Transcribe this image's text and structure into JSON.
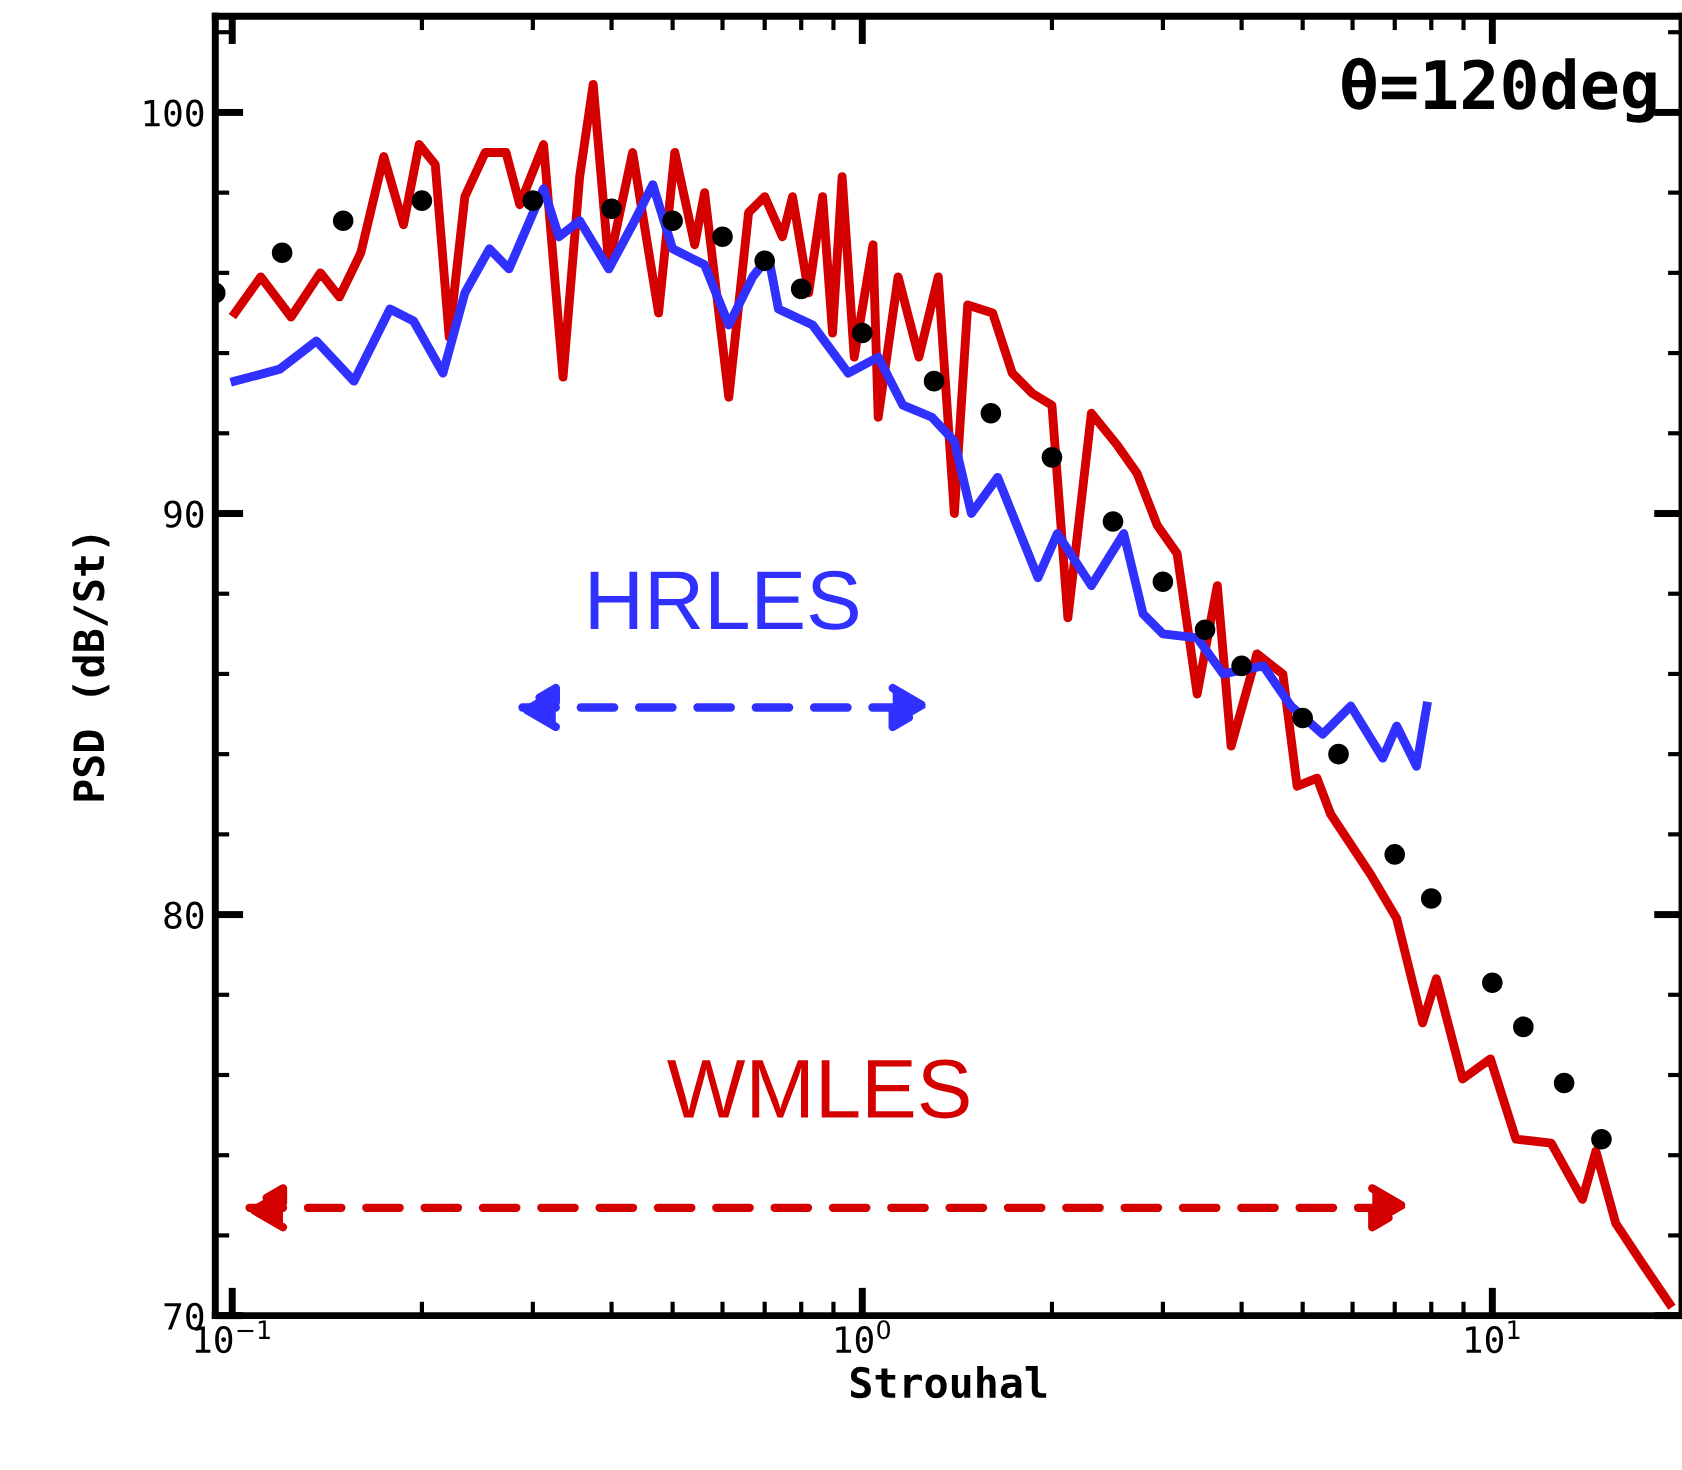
{
  "chart_data": {
    "type": "line",
    "xlabel": "Strouhal",
    "ylabel": "PSD (dB/St)",
    "log": "x",
    "grid": false,
    "legend": false,
    "xlim": [
      0.094,
      20
    ],
    "ylim": [
      70,
      102.4
    ],
    "xticks": [
      {
        "value": 0.1,
        "label": "10$^{−1}$"
      },
      {
        "value": 1,
        "label": "10$^{0}$"
      },
      {
        "value": 10,
        "label": "10$^{1}$"
      }
    ],
    "yticks": [
      70,
      80,
      90,
      100
    ],
    "annotations": [
      "θ=120deg"
    ],
    "series": [
      {
        "type": "scatter",
        "marker": "circle",
        "color": "#000000",
        "x": [
          0.094,
          0.12,
          0.15,
          0.2,
          0.3,
          0.4,
          0.5,
          0.6,
          0.7,
          0.8,
          1.0,
          1.3,
          1.6,
          2.0,
          2.5,
          3.0,
          3.5,
          4.0,
          5.0,
          5.7,
          7.0,
          8.0,
          10,
          11.2,
          13,
          14.9
        ],
        "values": [
          95.5,
          96.5,
          97.3,
          97.8,
          97.8,
          97.6,
          97.3,
          96.9,
          96.3,
          95.6,
          94.5,
          93.3,
          92.5,
          91.4,
          89.8,
          88.3,
          87.1,
          86.2,
          84.9,
          84.0,
          81.5,
          80.4,
          78.3,
          77.2,
          75.8,
          74.4
        ]
      },
      {
        "name": "WMLES",
        "color": "#d40000",
        "x": [
          0.101,
          0.111,
          0.124,
          0.138,
          0.148,
          0.16,
          0.174,
          0.187,
          0.198,
          0.21,
          0.221,
          0.234,
          0.252,
          0.272,
          0.286,
          0.312,
          0.335,
          0.356,
          0.374,
          0.396,
          0.432,
          0.475,
          0.504,
          0.542,
          0.562,
          0.614,
          0.66,
          0.7,
          0.747,
          0.775,
          0.822,
          0.865,
          0.897,
          0.929,
          0.971,
          1.04,
          1.06,
          1.14,
          1.23,
          1.32,
          1.4,
          1.47,
          1.61,
          1.73,
          1.86,
          2.0,
          2.12,
          2.31,
          2.54,
          2.73,
          2.94,
          3.16,
          3.4,
          3.66,
          3.85,
          4.23,
          4.65,
          4.9,
          5.27,
          5.54,
          6.41,
          7.05,
          7.75,
          8.15,
          8.97,
          9.93,
          10.9,
          12.4,
          13.9,
          14.6,
          15.7,
          17.3,
          19.1
        ],
        "values": [
          95.0,
          95.9,
          94.9,
          96.0,
          95.4,
          96.5,
          98.9,
          97.2,
          99.2,
          98.7,
          94.4,
          97.9,
          99.0,
          99.0,
          97.7,
          99.2,
          93.4,
          98.4,
          100.7,
          96.2,
          99.0,
          95.0,
          99.0,
          96.7,
          98.0,
          92.9,
          97.5,
          97.9,
          96.9,
          97.9,
          95.5,
          97.9,
          94.5,
          98.4,
          93.9,
          96.7,
          92.4,
          95.9,
          93.9,
          95.9,
          90.0,
          95.2,
          95.0,
          93.5,
          93.0,
          92.7,
          87.4,
          92.5,
          91.7,
          91.0,
          89.7,
          89.0,
          85.5,
          88.2,
          84.2,
          86.5,
          86.0,
          83.2,
          83.4,
          82.5,
          81.0,
          79.9,
          77.3,
          78.4,
          75.9,
          76.4,
          74.4,
          74.3,
          72.9,
          74.1,
          72.3,
          71.3,
          70.3
        ]
      },
      {
        "name": "HRLES",
        "color": "#3030ff",
        "x": [
          0.101,
          0.119,
          0.136,
          0.156,
          0.178,
          0.194,
          0.216,
          0.234,
          0.256,
          0.275,
          0.312,
          0.33,
          0.356,
          0.396,
          0.432,
          0.465,
          0.5,
          0.562,
          0.614,
          0.67,
          0.71,
          0.736,
          0.834,
          0.95,
          1.06,
          1.16,
          1.29,
          1.4,
          1.49,
          1.64,
          1.9,
          2.04,
          2.31,
          2.6,
          2.79,
          3.0,
          3.4,
          3.74,
          4.33,
          4.79,
          5.38,
          5.96,
          6.7,
          7.05,
          7.58,
          7.87
        ],
        "values": [
          93.3,
          93.6,
          94.3,
          93.3,
          95.1,
          94.8,
          93.5,
          95.5,
          96.6,
          96.1,
          98.1,
          96.9,
          97.3,
          96.1,
          97.2,
          98.2,
          96.6,
          96.2,
          94.7,
          95.9,
          96.4,
          95.1,
          94.7,
          93.5,
          93.9,
          92.7,
          92.4,
          91.8,
          90.0,
          90.9,
          88.4,
          89.5,
          88.2,
          89.5,
          87.5,
          87.0,
          86.9,
          86.0,
          86.2,
          85.2,
          84.5,
          85.2,
          83.9,
          84.7,
          83.7,
          85.2
        ]
      }
    ]
  }
}
